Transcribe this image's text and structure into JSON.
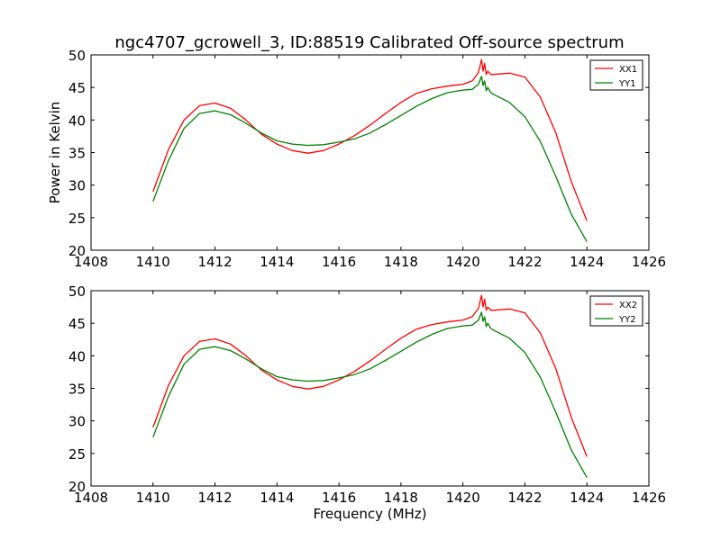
{
  "figure": {
    "title": "ngc4707_gcrowell_3, ID:88519 Calibrated Off-source spectrum"
  },
  "chart_data": [
    {
      "type": "line",
      "title": "ngc4707_gcrowell_3, ID:88519 Calibrated Off-source spectrum",
      "xlabel": "",
      "ylabel": "Power in Kelvin",
      "xlim": [
        1408,
        1426
      ],
      "ylim": [
        20,
        50
      ],
      "xticks": [
        1408,
        1410,
        1412,
        1414,
        1416,
        1418,
        1420,
        1422,
        1424,
        1426
      ],
      "yticks": [
        20,
        25,
        30,
        35,
        40,
        45,
        50
      ],
      "grid": false,
      "legend": "top-right",
      "series": [
        {
          "name": "XX1",
          "color": "#ff0000",
          "x": [
            1410.0,
            1410.5,
            1411.0,
            1411.5,
            1412.0,
            1412.5,
            1413.0,
            1413.5,
            1414.0,
            1414.5,
            1415.0,
            1415.5,
            1416.0,
            1416.5,
            1417.0,
            1417.5,
            1418.0,
            1418.5,
            1419.0,
            1419.5,
            1420.0,
            1420.3,
            1420.5,
            1420.6,
            1420.65,
            1420.7,
            1420.75,
            1420.8,
            1420.9,
            1421.0,
            1421.5,
            1422.0,
            1422.5,
            1423.0,
            1423.5,
            1424.0
          ],
          "y": [
            29.0,
            35.5,
            40.0,
            42.2,
            42.6,
            41.8,
            40.0,
            37.8,
            36.3,
            35.3,
            34.9,
            35.3,
            36.3,
            37.6,
            39.2,
            41.0,
            42.7,
            44.1,
            44.8,
            45.2,
            45.5,
            46.0,
            47.3,
            49.3,
            47.5,
            48.7,
            47.0,
            47.5,
            47.0,
            47.0,
            47.2,
            46.6,
            43.5,
            38.0,
            30.5,
            24.5
          ]
        },
        {
          "name": "YY1",
          "color": "#008000",
          "x": [
            1410.0,
            1410.5,
            1411.0,
            1411.5,
            1412.0,
            1412.5,
            1413.0,
            1413.5,
            1414.0,
            1414.5,
            1415.0,
            1415.5,
            1416.0,
            1416.5,
            1417.0,
            1417.5,
            1418.0,
            1418.5,
            1419.0,
            1419.5,
            1420.0,
            1420.3,
            1420.5,
            1420.6,
            1420.65,
            1420.7,
            1420.75,
            1420.8,
            1420.9,
            1421.0,
            1421.5,
            1422.0,
            1422.5,
            1423.0,
            1423.5,
            1424.0
          ],
          "y": [
            27.5,
            33.8,
            38.7,
            41.0,
            41.4,
            40.8,
            39.5,
            38.0,
            36.8,
            36.3,
            36.1,
            36.2,
            36.6,
            37.1,
            38.0,
            39.3,
            40.7,
            42.1,
            43.3,
            44.2,
            44.6,
            44.7,
            45.5,
            46.7,
            45.3,
            46.0,
            44.5,
            45.0,
            44.2,
            43.9,
            42.7,
            40.5,
            36.7,
            31.3,
            25.5,
            21.3
          ]
        }
      ]
    },
    {
      "type": "line",
      "title": "",
      "xlabel": "Frequency (MHz)",
      "ylabel": "",
      "xlim": [
        1408,
        1426
      ],
      "ylim": [
        20,
        50
      ],
      "xticks": [
        1408,
        1410,
        1412,
        1414,
        1416,
        1418,
        1420,
        1422,
        1424,
        1426
      ],
      "yticks": [
        20,
        25,
        30,
        35,
        40,
        45,
        50
      ],
      "grid": false,
      "legend": "top-right",
      "series": [
        {
          "name": "XX2",
          "color": "#ff0000",
          "x": [
            1410.0,
            1410.5,
            1411.0,
            1411.5,
            1412.0,
            1412.5,
            1413.0,
            1413.5,
            1414.0,
            1414.5,
            1415.0,
            1415.5,
            1416.0,
            1416.5,
            1417.0,
            1417.5,
            1418.0,
            1418.5,
            1419.0,
            1419.5,
            1420.0,
            1420.3,
            1420.5,
            1420.6,
            1420.65,
            1420.7,
            1420.75,
            1420.8,
            1420.9,
            1421.0,
            1421.5,
            1422.0,
            1422.5,
            1423.0,
            1423.5,
            1424.0
          ],
          "y": [
            29.0,
            35.5,
            40.0,
            42.2,
            42.6,
            41.8,
            40.0,
            37.8,
            36.3,
            35.3,
            34.9,
            35.3,
            36.3,
            37.6,
            39.2,
            41.0,
            42.7,
            44.1,
            44.8,
            45.2,
            45.5,
            46.0,
            47.3,
            49.3,
            47.5,
            48.7,
            47.0,
            47.5,
            47.0,
            47.0,
            47.2,
            46.6,
            43.5,
            38.0,
            30.5,
            24.5
          ]
        },
        {
          "name": "YY2",
          "color": "#008000",
          "x": [
            1410.0,
            1410.5,
            1411.0,
            1411.5,
            1412.0,
            1412.5,
            1413.0,
            1413.5,
            1414.0,
            1414.5,
            1415.0,
            1415.5,
            1416.0,
            1416.5,
            1417.0,
            1417.5,
            1418.0,
            1418.5,
            1419.0,
            1419.5,
            1420.0,
            1420.3,
            1420.5,
            1420.6,
            1420.65,
            1420.7,
            1420.75,
            1420.8,
            1420.9,
            1421.0,
            1421.5,
            1422.0,
            1422.5,
            1423.0,
            1423.5,
            1424.0
          ],
          "y": [
            27.5,
            33.8,
            38.7,
            41.0,
            41.4,
            40.8,
            39.5,
            38.0,
            36.8,
            36.3,
            36.1,
            36.2,
            36.6,
            37.1,
            38.0,
            39.3,
            40.7,
            42.1,
            43.3,
            44.2,
            44.6,
            44.7,
            45.5,
            46.7,
            45.3,
            46.0,
            44.5,
            45.0,
            44.2,
            43.9,
            42.7,
            40.5,
            36.7,
            31.3,
            25.5,
            21.3
          ]
        }
      ]
    }
  ]
}
